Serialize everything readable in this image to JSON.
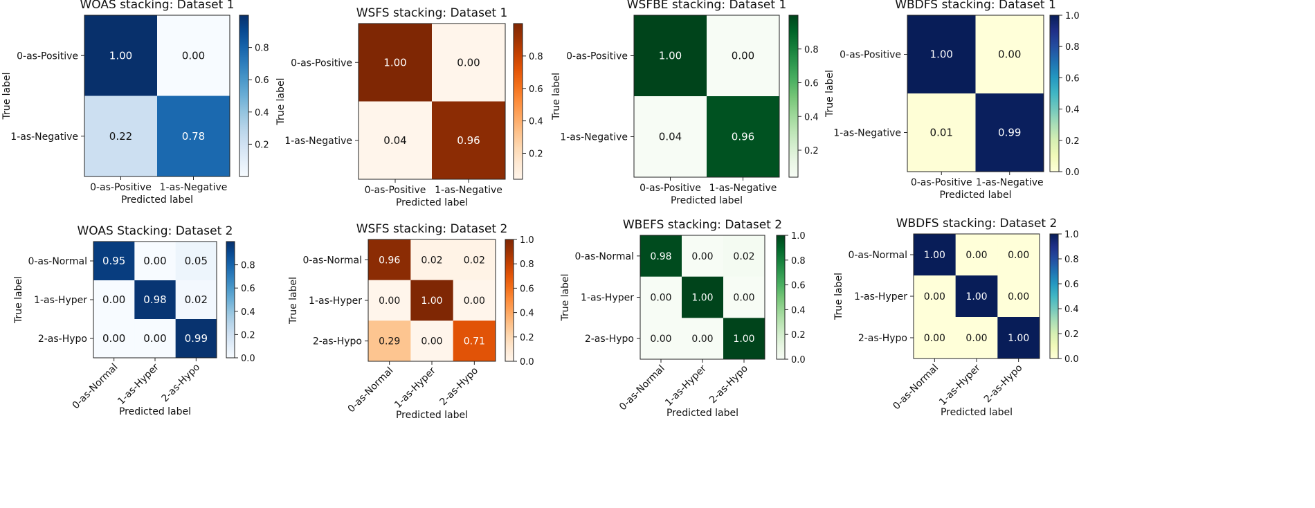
{
  "chart_data": [
    {
      "type": "heatmap",
      "title": "WOAS stacking: Dataset 1",
      "colormap": "Blues",
      "labels": [
        "0-as-Positive",
        "1-as-Negative"
      ],
      "values": [
        [
          1.0,
          0.0
        ],
        [
          0.22,
          0.78
        ]
      ],
      "cells": [
        [
          "1.00",
          "0.00"
        ],
        [
          "0.22",
          "0.78"
        ]
      ],
      "xlabel": "Predicted label",
      "ylabel": "True label",
      "colorbar": {
        "ticks": [
          "0.2",
          "0.4",
          "0.6",
          "0.8"
        ],
        "range": [
          0,
          1
        ]
      },
      "rotated_xticks": false
    },
    {
      "type": "heatmap",
      "title": "WSFS stacking: Dataset 1",
      "colormap": "Oranges",
      "labels": [
        "0-as-Positive",
        "1-as-Negative"
      ],
      "values": [
        [
          1.0,
          0.0
        ],
        [
          0.04,
          0.96
        ]
      ],
      "cells": [
        [
          "1.00",
          "0.00"
        ],
        [
          "0.04",
          "0.96"
        ]
      ],
      "xlabel": "Predicted label",
      "ylabel": "True label",
      "colorbar": {
        "ticks": [
          "0.2",
          "0.4",
          "0.6",
          "0.8"
        ],
        "range": [
          0,
          1
        ]
      },
      "rotated_xticks": false
    },
    {
      "type": "heatmap",
      "title": "WSFBE stacking: Dataset 1",
      "colormap": "Greens",
      "labels": [
        "0-as-Positive",
        "1-as-Negative"
      ],
      "values": [
        [
          1.0,
          0.0
        ],
        [
          0.04,
          0.96
        ]
      ],
      "cells": [
        [
          "1.00",
          "0.00"
        ],
        [
          "0.04",
          "0.96"
        ]
      ],
      "xlabel": "Predicted label",
      "ylabel": "True label",
      "colorbar": {
        "ticks": [
          "0.2",
          "0.4",
          "0.6",
          "0.8"
        ],
        "range": [
          0,
          1
        ]
      },
      "rotated_xticks": false
    },
    {
      "type": "heatmap",
      "title": "WBDFS stacking: Dataset 1",
      "colormap": "YlGnBu",
      "labels": [
        "0-as-Positive",
        "1-as-Negative"
      ],
      "values": [
        [
          1.0,
          0.0
        ],
        [
          0.01,
          0.99
        ]
      ],
      "cells": [
        [
          "1.00",
          "0.00"
        ],
        [
          "0.01",
          "0.99"
        ]
      ],
      "xlabel": "Predicted label",
      "ylabel": "True label",
      "colorbar": {
        "ticks": [
          "0.0",
          "0.2",
          "0.4",
          "0.6",
          "0.8",
          "1.0"
        ],
        "range": [
          0,
          1
        ]
      },
      "rotated_xticks": false
    },
    {
      "type": "heatmap",
      "title": "WOAS Stacking: Dataset 2",
      "colormap": "Blues",
      "labels": [
        "0-as-Normal",
        "1-as-Hyper",
        "2-as-Hypo"
      ],
      "values": [
        [
          0.95,
          0.0,
          0.05
        ],
        [
          0.0,
          0.98,
          0.02
        ],
        [
          0.0,
          0.0,
          0.99
        ]
      ],
      "cells": [
        [
          "0.95",
          "0.00",
          "0.05"
        ],
        [
          "0.00",
          "0.98",
          "0.02"
        ],
        [
          "0.00",
          "0.00",
          "0.99"
        ]
      ],
      "xlabel": "Predicted label",
      "ylabel": "True label",
      "colorbar": {
        "ticks": [
          "0.0",
          "0.2",
          "0.4",
          "0.6",
          "0.8"
        ],
        "range": [
          0,
          1
        ]
      },
      "rotated_xticks": true
    },
    {
      "type": "heatmap",
      "title": "WSFS stacking: Dataset 2",
      "colormap": "Oranges",
      "labels": [
        "0-as-Normal",
        "1-as-Hyper",
        "2-as-Hypo"
      ],
      "values": [
        [
          0.96,
          0.02,
          0.02
        ],
        [
          0.0,
          1.0,
          0.0
        ],
        [
          0.29,
          0.0,
          0.71
        ]
      ],
      "cells": [
        [
          "0.96",
          "0.02",
          "0.02"
        ],
        [
          "0.00",
          "1.00",
          "0.00"
        ],
        [
          "0.29",
          "0.00",
          "0.71"
        ]
      ],
      "xlabel": "Predicted label",
      "ylabel": "True label",
      "colorbar": {
        "ticks": [
          "0.0",
          "0.2",
          "0.4",
          "0.6",
          "0.8",
          "1.0"
        ],
        "range": [
          0,
          1
        ]
      },
      "rotated_xticks": true
    },
    {
      "type": "heatmap",
      "title": "WBEFS stacking: Dataset 2",
      "colormap": "Greens",
      "labels": [
        "0-as-Normal",
        "1-as-Hyper",
        "2-as-Hypo"
      ],
      "values": [
        [
          0.98,
          0.0,
          0.02
        ],
        [
          0.0,
          1.0,
          0.0
        ],
        [
          0.0,
          0.0,
          1.0
        ]
      ],
      "cells": [
        [
          "0.98",
          "0.00",
          "0.02"
        ],
        [
          "0.00",
          "1.00",
          "0.00"
        ],
        [
          "0.00",
          "0.00",
          "1.00"
        ]
      ],
      "xlabel": "Predicted label",
      "ylabel": "True label",
      "colorbar": {
        "ticks": [
          "0.0",
          "0.2",
          "0.4",
          "0.6",
          "0.8",
          "1.0"
        ],
        "range": [
          0,
          1
        ]
      },
      "rotated_xticks": true
    },
    {
      "type": "heatmap",
      "title": "WBDFS stacking: Dataset 2",
      "colormap": "YlGnBu",
      "labels": [
        "0-as-Normal",
        "1-as-Hyper",
        "2-as-Hypo"
      ],
      "values": [
        [
          1.0,
          0.0,
          0.0
        ],
        [
          0.0,
          1.0,
          0.0
        ],
        [
          0.0,
          0.0,
          1.0
        ]
      ],
      "cells": [
        [
          "1.00",
          "0.00",
          "0.00"
        ],
        [
          "0.00",
          "1.00",
          "0.00"
        ],
        [
          "0.00",
          "0.00",
          "1.00"
        ]
      ],
      "xlabel": "Predicted label",
      "ylabel": "True label",
      "colorbar": {
        "ticks": [
          "0.0",
          "0.2",
          "0.4",
          "0.6",
          "0.8",
          "1.0"
        ],
        "range": [
          0,
          1
        ]
      },
      "rotated_xticks": true
    }
  ]
}
